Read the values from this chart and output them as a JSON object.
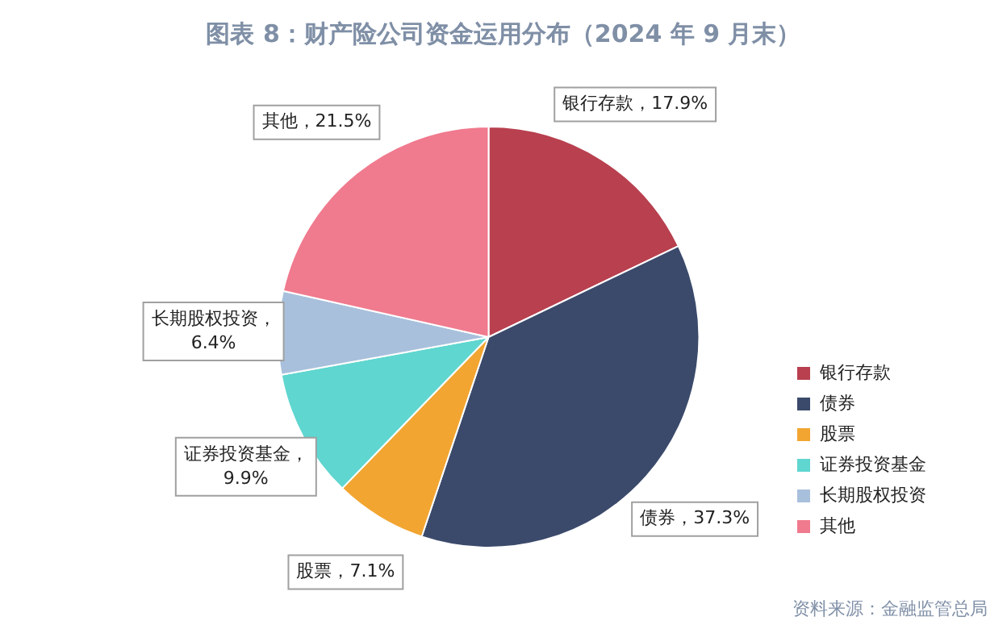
{
  "chart_data": {
    "type": "pie",
    "title": "图表 8：财产险公司资金运用分布（2024 年 9 月末）",
    "categories": [
      "银行存款",
      "债券",
      "股票",
      "证券投资基金",
      "长期股权投资",
      "其他"
    ],
    "values": [
      17.9,
      37.3,
      7.1,
      9.9,
      6.4,
      21.5
    ],
    "value_labels": [
      "银行存款，17.9%",
      "债券，37.3%",
      "股票，7.1%",
      "证券投资基金，9.9%",
      "长期股权投资，6.4%",
      "其他，21.5%"
    ],
    "colors": [
      "#b8404f",
      "#3b4a6b",
      "#f2a531",
      "#5fd6cf",
      "#a8c0dc",
      "#f07a8e"
    ],
    "legend": "right",
    "annotations": [
      "资料来源：金融监管总局"
    ]
  }
}
